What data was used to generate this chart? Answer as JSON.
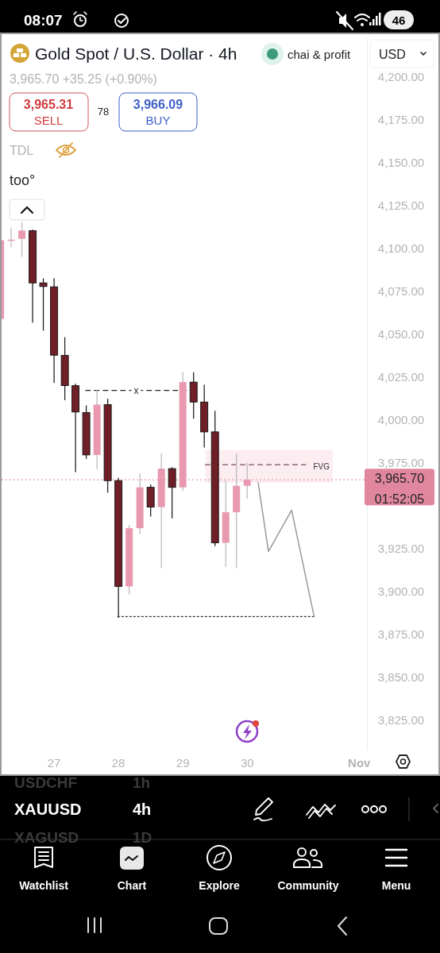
{
  "chart_data": {
    "type": "candlestick",
    "title": "Gold Spot / U.S. Dollar · 4h",
    "subtitle": "3,965.70  +35.25 (+0.90%)",
    "x": [
      26.167,
      26.333,
      26.5,
      26.667,
      26.833,
      27,
      27.167,
      27.333,
      27.5,
      27.667,
      27.833,
      28,
      28.167,
      28.333,
      28.5,
      28.667,
      28.833,
      29,
      29.167,
      29.333,
      29.5,
      29.667,
      29.833,
      30
    ],
    "ohlc": [
      [
        4059.4,
        4105.2,
        4059.4,
        4105.2
      ],
      [
        4105.5,
        4112.6,
        4101.1,
        4105.6
      ],
      [
        4106.1,
        4115.8,
        4095.5,
        4110.9
      ],
      [
        4110.8,
        4111.5,
        4057.3,
        4080.4
      ],
      [
        4080.4,
        4083,
        4052.6,
        4078.3
      ],
      [
        4078.1,
        4083.2,
        4022.1,
        4038.3
      ],
      [
        4038.2,
        4048.8,
        4012.1,
        4020.6
      ],
      [
        4020.5,
        4021.8,
        3970.2,
        4005.2
      ],
      [
        4004.9,
        4009,
        3977.9,
        3980.2
      ],
      [
        3980.2,
        4018,
        3972,
        4009.5
      ],
      [
        4009.5,
        4012.9,
        3958.2,
        3965.2
      ],
      [
        3965.2,
        3966.8,
        3885.4,
        3903.6
      ],
      [
        3903.6,
        3939.4,
        3899,
        3937.5
      ],
      [
        3937.5,
        3969.4,
        3934,
        3961.3
      ],
      [
        3961.3,
        3963,
        3944.2,
        3949.8
      ],
      [
        3949.8,
        3981,
        3914.2,
        3972.2
      ],
      [
        3972.2,
        3973,
        3943.2,
        3961.3
      ],
      [
        3961.3,
        4028.3,
        3959,
        4022.6
      ],
      [
        4022.6,
        4028.3,
        4001.3,
        4011
      ],
      [
        4011,
        4021.1,
        3984.5,
        3993.6
      ],
      [
        3993.6,
        4005.9,
        3927,
        3929
      ],
      [
        3929,
        3965.2,
        3915,
        3946.8
      ],
      [
        3946.8,
        3981,
        3914.2,
        3962.2
      ],
      [
        3962.2,
        3975.6,
        3954.8,
        3965.7
      ]
    ],
    "colors": [
      "#e899b0",
      "#e899b0",
      "#e899b0",
      "#6e1f27",
      "#6e1f27",
      "#6e1f27",
      "#6e1f27",
      "#6e1f27",
      "#6e1f27",
      "#e899b0",
      "#6e1f27",
      "#6e1f27",
      "#e899b0",
      "#e899b0",
      "#6e1f27",
      "#e899b0",
      "#6e1f27",
      "#e899b0",
      "#6e1f27",
      "#6e1f27",
      "#6e1f27",
      "#e899b0",
      "#e899b0",
      "#e899b0"
    ],
    "series": [
      {
        "type": "line",
        "name": "x",
        "x": [
          27.49,
          29.06
        ],
        "values": [
          4017.8,
          4017.8
        ],
        "color": "#222222",
        "line_style": "dashed"
      },
      {
        "type": "line",
        "x": [
          29.35,
          30.91
        ],
        "values": [
          3974.5,
          3974.5
        ],
        "color": "#7a4a66",
        "line_style": "dashed"
      },
      {
        "type": "line",
        "x": [
          27.99,
          31.04
        ],
        "values": [
          3886,
          3886
        ],
        "color": "#333333",
        "line_style": "dotted"
      },
      {
        "type": "line",
        "x": [
          30.17,
          30.33,
          30.69,
          31.04
        ],
        "values": [
          3964.2,
          3924,
          3948,
          3886
        ],
        "color": "#999999",
        "line_style": "solid"
      }
    ],
    "bands": [
      {
        "axis": "y",
        "from": 3964,
        "to": 3983,
        "label": "FVG",
        "color": "#fcedf1"
      }
    ],
    "ref_lines": [
      {
        "axis": "y",
        "value": 3965.7,
        "label": "3,965.70",
        "color": "#e0879f",
        "line_style": "dotted"
      }
    ],
    "xlim": [
      26.16,
      31.86
    ],
    "xticks": [
      27,
      28,
      29,
      30,
      {
        "value": 31.74,
        "label": "Nov"
      }
    ],
    "ylim": [
      3808,
      4223
    ],
    "yticks": [
      {
        "value": 4200,
        "label": "4,200.00"
      },
      {
        "value": 4175,
        "label": "4,175.00"
      },
      {
        "value": 4150,
        "label": "4,150.00"
      },
      {
        "value": 4125,
        "label": "4,125.00"
      },
      {
        "value": 4100,
        "label": "4,100.00"
      },
      {
        "value": 4075,
        "label": "4,075.00"
      },
      {
        "value": 4050,
        "label": "4,050.00"
      },
      {
        "value": 4025,
        "label": "4,025.00"
      },
      {
        "value": 4000,
        "label": "4,000.00"
      },
      {
        "value": 3975,
        "label": "3,975.00"
      },
      {
        "value": 3925,
        "label": "3,925.00"
      },
      {
        "value": 3900,
        "label": "3,900.00"
      },
      {
        "value": 3875,
        "label": "3,875.00"
      },
      {
        "value": 3850,
        "label": "3,850.00"
      },
      {
        "value": 3825,
        "label": "3,825.00"
      }
    ],
    "grid": false,
    "annotations": [
      "chai & profit",
      "USD",
      "3,965.31",
      "SELL",
      "78",
      "3,966.09",
      "BUY",
      "TDL",
      "too°",
      "01:52:05",
      "08:07",
      "46",
      "USDCHF",
      "1h",
      "XAUUSD",
      "4h",
      "XAGUSD",
      "1D",
      "Watchlist",
      "Chart",
      "Explore",
      "Community",
      "Menu"
    ]
  }
}
